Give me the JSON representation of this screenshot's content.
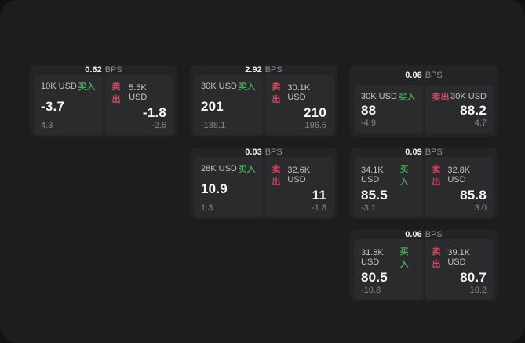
{
  "labels": {
    "bps_unit": "BPS",
    "buy": "买入",
    "sell": "卖出"
  },
  "colors": {
    "buy": "#46a758",
    "sell": "#d4485e",
    "panel_bg": "#1d1d1e",
    "card_bg": "#242426",
    "pane_bg": "#2b2b2d"
  },
  "cards": [
    {
      "row": 1,
      "col": 1,
      "bps": "0.62",
      "buy": {
        "amount": "10K USD",
        "price": "-3.7",
        "delta": "4.3"
      },
      "sell": {
        "amount": "5.5K USD",
        "price": "-1.8",
        "delta": "-2.6"
      }
    },
    {
      "row": 1,
      "col": 2,
      "bps": "2.92",
      "buy": {
        "amount": "30K USD",
        "price": "201",
        "delta": "-188.1"
      },
      "sell": {
        "amount": "30.1K USD",
        "price": "210",
        "delta": "196.5"
      }
    },
    {
      "row": 1,
      "col": 3,
      "bps": "0.06",
      "buy": {
        "amount": "30K USD",
        "price": "88",
        "delta": "-4.9"
      },
      "sell": {
        "amount": "30K USD",
        "price": "88.2",
        "delta": "4.7"
      }
    },
    {
      "row": 2,
      "col": 2,
      "bps": "0.03",
      "buy": {
        "amount": "28K USD",
        "price": "10.9",
        "delta": "1.3"
      },
      "sell": {
        "amount": "32.6K USD",
        "price": "11",
        "delta": "-1.8"
      }
    },
    {
      "row": 2,
      "col": 3,
      "bps": "0.09",
      "buy": {
        "amount": "34.1K USD",
        "price": "85.5",
        "delta": "-3.1"
      },
      "sell": {
        "amount": "32.8K USD",
        "price": "85.8",
        "delta": "3.0"
      }
    },
    {
      "row": 3,
      "col": 3,
      "bps": "0.06",
      "buy": {
        "amount": "31.8K USD",
        "price": "80.5",
        "delta": "-10.8"
      },
      "sell": {
        "amount": "39.1K USD",
        "price": "80.7",
        "delta": "10.2"
      }
    }
  ]
}
